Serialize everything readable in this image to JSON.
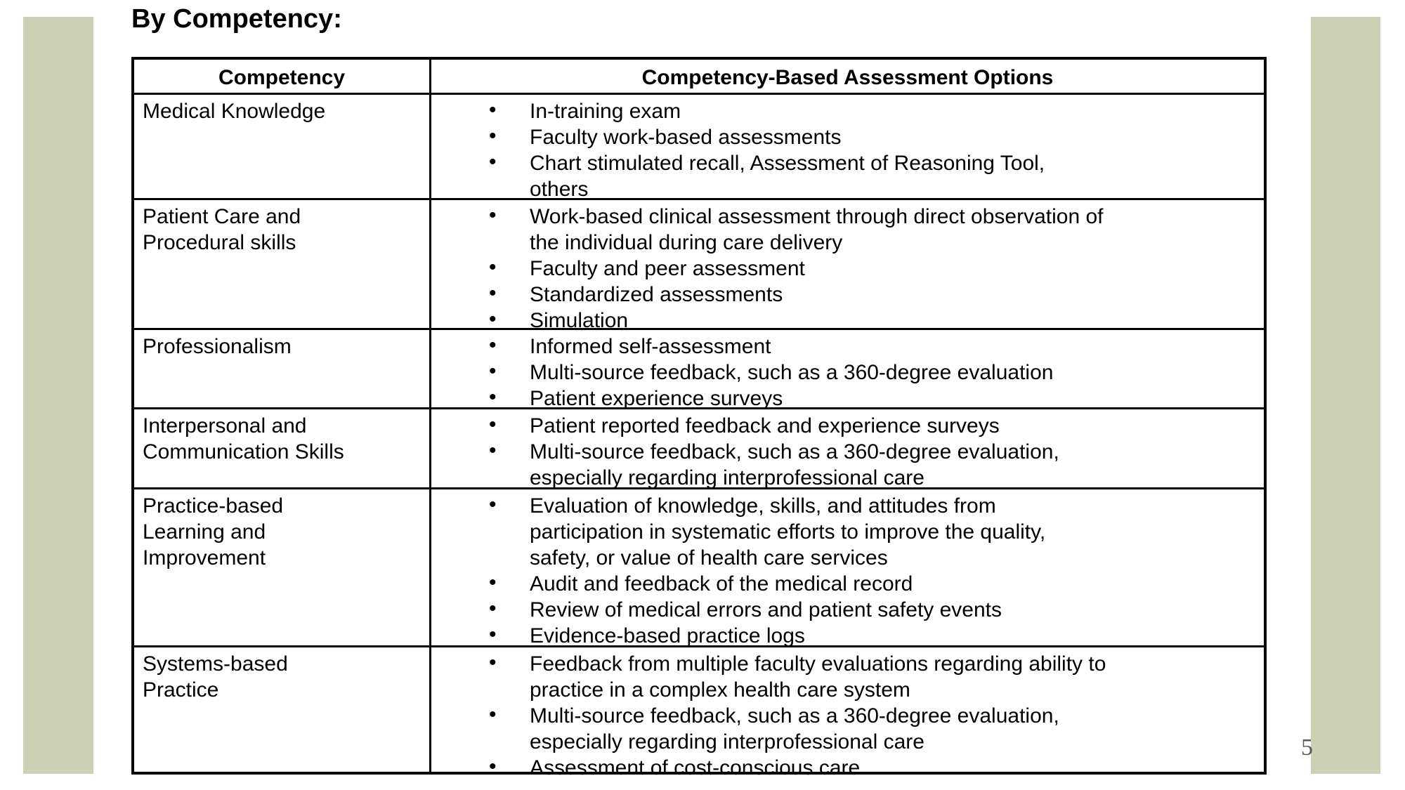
{
  "page": {
    "title": "By Competency:",
    "page_number": "5",
    "accent_bar_color": "#ccd0b4",
    "bullet_glyph": "•"
  },
  "table": {
    "headers": [
      "Competency",
      "Competency-Based Assessment Options"
    ],
    "rows": [
      {
        "competency": "Medical Knowledge",
        "options": [
          "In-training exam",
          "Faculty work-based assessments",
          "Chart stimulated recall, Assessment of Reasoning Tool,\nothers"
        ]
      },
      {
        "competency": "Patient Care and\nProcedural skills",
        "options": [
          "Work-based clinical assessment through direct observation of\nthe individual during care delivery",
          "Faculty and peer assessment",
          "Standardized assessments",
          "Simulation"
        ]
      },
      {
        "competency": "Professionalism",
        "options": [
          "Informed self-assessment",
          "Multi-source feedback, such as a 360-degree evaluation",
          "Patient experience surveys"
        ]
      },
      {
        "competency": "Interpersonal and\nCommunication Skills",
        "options": [
          "Patient reported feedback and experience surveys",
          "Multi-source feedback, such as a 360-degree evaluation,\nespecially regarding interprofessional care"
        ]
      },
      {
        "competency": "Practice-based\nLearning and\nImprovement",
        "options": [
          "Evaluation of knowledge, skills, and attitudes from\nparticipation in systematic efforts to improve the quality,\nsafety, or value of health care services",
          "Audit and feedback of the medical record",
          "Review of medical errors and patient safety events",
          "Evidence-based practice logs"
        ]
      },
      {
        "competency": "Systems-based\nPractice",
        "options": [
          "Feedback from multiple faculty evaluations regarding ability to\npractice in a complex health care system",
          "Multi-source feedback, such as a 360-degree evaluation,\nespecially regarding interprofessional care",
          "Assessment of cost-conscious care"
        ]
      }
    ]
  }
}
